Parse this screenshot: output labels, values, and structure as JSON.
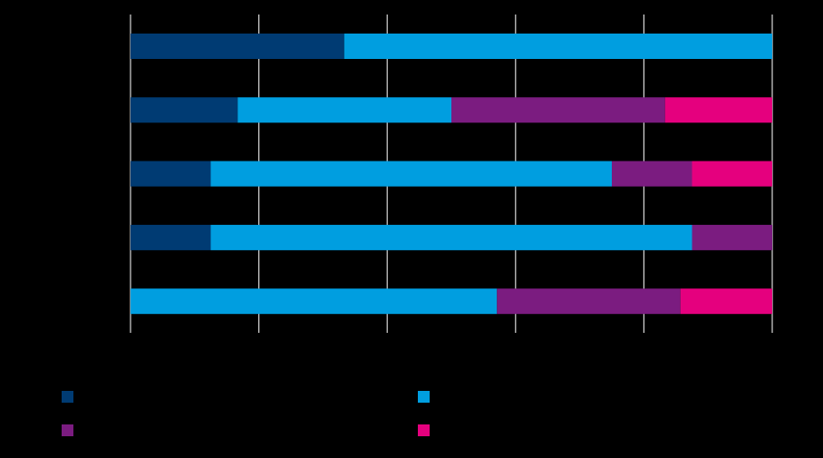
{
  "chart_data": {
    "type": "bar",
    "orientation": "horizontal",
    "stacked": true,
    "title": "",
    "xlabel": "",
    "ylabel": "",
    "xlim": [
      0,
      100
    ],
    "grid": true,
    "legend_position": "bottom",
    "categories": [
      "",
      "",
      "",
      "",
      ""
    ],
    "series": [
      {
        "color": "#003b73",
        "values": [
          33.3,
          16.7,
          12.5,
          12.5,
          0
        ]
      },
      {
        "color": "#009ee0",
        "values": [
          66.7,
          33.3,
          62.5,
          75.0,
          57.1
        ]
      },
      {
        "color": "#7b1c80",
        "values": [
          0,
          33.3,
          12.5,
          12.5,
          28.6
        ]
      },
      {
        "color": "#e5007e",
        "values": [
          0,
          16.7,
          12.5,
          0,
          14.3
        ]
      }
    ]
  }
}
